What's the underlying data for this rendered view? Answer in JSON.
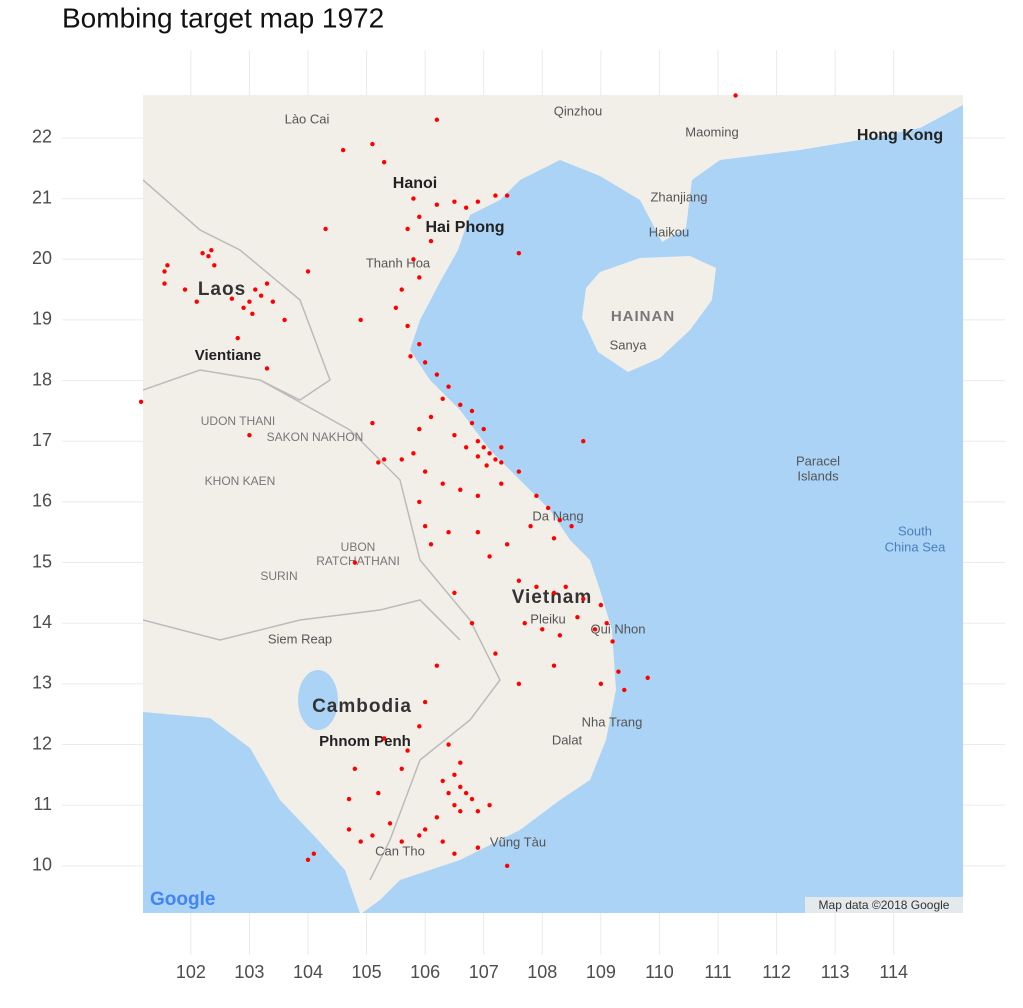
{
  "chart_data": {
    "type": "scatter",
    "title": "Bombing target map 1972",
    "color": "#ff0000",
    "grid": true,
    "xlim": [
      99.8,
      115.9
    ],
    "ylim": [
      8.53,
      23.45
    ],
    "xticks": [
      102,
      103,
      104,
      105,
      106,
      107,
      108,
      109,
      110,
      111,
      112,
      113,
      114
    ],
    "yticks": [
      10,
      11,
      12,
      13,
      14,
      15,
      16,
      17,
      18,
      19,
      20,
      21,
      22
    ],
    "x": [
      101.55,
      101.55,
      101.6,
      102.2,
      102.3,
      102.35,
      102.4,
      103,
      103.1,
      103.2,
      102.9,
      103.3,
      103.05,
      102.7,
      103.4,
      103.6,
      101.15,
      102.8,
      104,
      104.3,
      104.6,
      105.3,
      105.8,
      105.9,
      106.2,
      106.5,
      106.7,
      106.9,
      107.2,
      107.4,
      106.1,
      105.7,
      105.8,
      105.9,
      105.6,
      105.5,
      105.7,
      105.9,
      105.75,
      106.0,
      106.2,
      106.4,
      106.6,
      106.3,
      106.8,
      106.9,
      107.0,
      107.1,
      107.2,
      107.3,
      107.05,
      106.9,
      106.7,
      106.5,
      106.1,
      105.9,
      105.8,
      105.6,
      106.0,
      106.3,
      106.6,
      106.9,
      107.3,
      107.6,
      107.9,
      108.1,
      108.3,
      108.5,
      108.2,
      107.8,
      107.4,
      106.9,
      106.4,
      106.1,
      106.0,
      105.9,
      107.1,
      107.6,
      107.9,
      108.2,
      108.4,
      108.7,
      109.0,
      109.1,
      109.2,
      108.9,
      108.6,
      108.3,
      108.0,
      107.7,
      109.3,
      109.4,
      109.0,
      108.2,
      107.6,
      107.2,
      106.8,
      106.5,
      106.2,
      106.0,
      105.9,
      106.4,
      106.6,
      106.5,
      106.6,
      106.7,
      106.8,
      106.4,
      106.3,
      106.5,
      106.6,
      106.9,
      107.1,
      106.2,
      106.0,
      105.9,
      105.6,
      106.3,
      106.5,
      105.4,
      105.1,
      104.9,
      104.7,
      105.2,
      105.6,
      105.3,
      105.7,
      104.7,
      104.8,
      104.1,
      104.0,
      107.4,
      106.9,
      107.3,
      107.0,
      106.8,
      105.3,
      105.2,
      104.8,
      103.3,
      103.0,
      104.9,
      105.1,
      109.8,
      108.7,
      111.3,
      105.1,
      106.2,
      107.6,
      102.1,
      101.9
    ],
    "values": [
      19.8,
      19.6,
      19.9,
      20.1,
      20.05,
      20.15,
      19.9,
      19.3,
      19.5,
      19.4,
      19.2,
      19.6,
      19.1,
      19.35,
      19.3,
      19.0,
      17.65,
      18.7,
      19.8,
      20.5,
      21.8,
      21.6,
      21.0,
      20.7,
      20.9,
      20.95,
      20.85,
      20.95,
      21.05,
      21.05,
      20.3,
      20.5,
      20.0,
      19.7,
      19.5,
      19.2,
      18.9,
      18.6,
      18.4,
      18.3,
      18.1,
      17.9,
      17.6,
      17.7,
      17.3,
      17.0,
      16.9,
      16.8,
      16.7,
      16.65,
      16.6,
      16.75,
      16.9,
      17.1,
      17.4,
      17.2,
      16.8,
      16.7,
      16.5,
      16.3,
      16.2,
      16.1,
      16.3,
      16.5,
      16.1,
      15.9,
      15.7,
      15.6,
      15.4,
      15.6,
      15.3,
      15.5,
      15.5,
      15.3,
      15.6,
      16.0,
      15.1,
      14.7,
      14.6,
      14.5,
      14.6,
      14.4,
      14.3,
      14.0,
      13.7,
      13.9,
      14.1,
      13.8,
      13.9,
      14.0,
      13.2,
      12.9,
      13.0,
      13.3,
      13.0,
      13.5,
      14.0,
      14.5,
      13.3,
      12.7,
      12.3,
      12.0,
      11.7,
      11.5,
      11.3,
      11.2,
      11.1,
      11.2,
      11.4,
      11.0,
      10.9,
      10.9,
      11.0,
      10.8,
      10.6,
      10.5,
      10.4,
      10.4,
      10.2,
      10.7,
      10.5,
      10.4,
      10.6,
      11.2,
      11.6,
      12.1,
      11.9,
      11.1,
      11.6,
      10.2,
      10.1,
      10.0,
      10.3,
      16.9,
      17.2,
      17.5,
      16.7,
      16.65,
      15.0,
      18.2,
      17.1,
      19.0,
      17.3,
      13.1,
      17.0,
      22.7,
      21.9,
      22.3,
      20.1,
      19.3,
      19.5
    ],
    "annotations": [
      "Hanoi",
      "Hai Phong",
      "Lào Cai",
      "Laos",
      "Vientiane",
      "Thanh Hoa",
      "Cambodia",
      "Phnom Penh",
      "Hong Kong",
      "HAINAN",
      "Sanya",
      "Haikou",
      "Zhanjiang",
      "Maoming",
      "Qinzhou",
      "Paracel",
      "Islands",
      "South",
      "China Sea",
      "UDON THANI",
      "SAKON NAKHON",
      "KHON KAEN",
      "UBON",
      "RATCHATHANI",
      "SURIN",
      "Siem Reap",
      "Nha Trang",
      "Dalat",
      "Vũng Tàu",
      "Can Tho",
      "Da Nang",
      "Vietnam",
      "Pleiku",
      "Qui Nhon",
      "Map data ©2018 Google",
      "Google"
    ]
  }
}
